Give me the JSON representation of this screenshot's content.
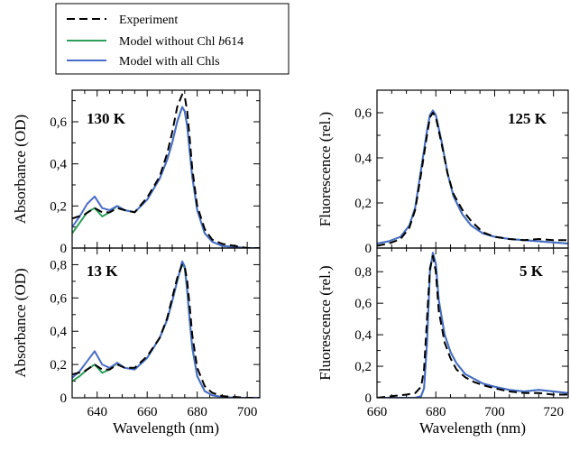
{
  "legend": {
    "entries": [
      {
        "label": "Experiment",
        "color": "#000000",
        "dash": true
      },
      {
        "label": "Model without Chl b614",
        "label_main": "Model without Chl ",
        "label_italic": "b",
        "label_tail": "614",
        "color": "#2ca05a",
        "dash": false
      },
      {
        "label": "Model with all Chls",
        "color": "#4a6cc8",
        "dash": false
      }
    ]
  },
  "colors": {
    "experiment": "#000000",
    "model_without": "#2ca05a",
    "model_all": "#4a6cc8"
  },
  "chart_data": [
    {
      "id": "abs-130K",
      "type": "line",
      "annotation": "130 K",
      "xlabel": "",
      "ylabel": "Absorbance (OD)",
      "xlim": [
        630,
        705
      ],
      "ylim": [
        0,
        0.75
      ],
      "xticks": [
        640,
        660,
        680,
        700
      ],
      "xtick_labels": [
        "640",
        "660",
        "680",
        "700"
      ],
      "yticks": [
        0,
        0.2,
        0.4,
        0.6
      ],
      "ytick_labels": [
        "0",
        "0,2",
        "0,4",
        "0,6"
      ],
      "series": [
        {
          "key": "experiment",
          "x": [
            630,
            635,
            639,
            642,
            645,
            648,
            651,
            655,
            660,
            665,
            668,
            670,
            672,
            674,
            675,
            676,
            677,
            678,
            680,
            683,
            686,
            690,
            695,
            700,
            705
          ],
          "y": [
            0.14,
            0.16,
            0.19,
            0.17,
            0.17,
            0.19,
            0.18,
            0.17,
            0.24,
            0.34,
            0.45,
            0.55,
            0.67,
            0.73,
            0.72,
            0.65,
            0.52,
            0.38,
            0.2,
            0.09,
            0.04,
            0.02,
            0.01,
            0.0,
            0.0
          ]
        },
        {
          "key": "model_without",
          "x": [
            630,
            633,
            636,
            639,
            642,
            645,
            648,
            651,
            655,
            660,
            665,
            668,
            670,
            672,
            674,
            675,
            676,
            677,
            678,
            680,
            683,
            686,
            690,
            695,
            700,
            705
          ],
          "y": [
            0.07,
            0.12,
            0.17,
            0.19,
            0.15,
            0.17,
            0.2,
            0.18,
            0.17,
            0.23,
            0.33,
            0.42,
            0.5,
            0.6,
            0.67,
            0.65,
            0.58,
            0.46,
            0.34,
            0.18,
            0.07,
            0.03,
            0.01,
            0.005,
            0.0,
            0.0
          ]
        },
        {
          "key": "model_all",
          "x": [
            630,
            633,
            636,
            639,
            642,
            645,
            648,
            651,
            655,
            660,
            665,
            668,
            670,
            672,
            674,
            675,
            676,
            677,
            678,
            680,
            683,
            686,
            690,
            695,
            700,
            705
          ],
          "y": [
            0.1,
            0.15,
            0.21,
            0.245,
            0.19,
            0.18,
            0.2,
            0.18,
            0.17,
            0.23,
            0.33,
            0.42,
            0.5,
            0.6,
            0.67,
            0.65,
            0.58,
            0.46,
            0.34,
            0.18,
            0.07,
            0.03,
            0.01,
            0.005,
            0.0,
            0.0
          ]
        }
      ]
    },
    {
      "id": "abs-13K",
      "type": "line",
      "annotation": "13 K",
      "xlabel": "Wavelength (nm)",
      "ylabel": "Absorbance (OD)",
      "xlim": [
        630,
        705
      ],
      "ylim": [
        0,
        0.9
      ],
      "xticks": [
        640,
        660,
        680,
        700
      ],
      "xtick_labels": [
        "640",
        "660",
        "680",
        "700"
      ],
      "yticks": [
        0,
        0.2,
        0.4,
        0.6,
        0.8
      ],
      "ytick_labels": [
        "0",
        "0,2",
        "0,4",
        "0,6",
        "0,8"
      ],
      "series": [
        {
          "key": "experiment",
          "x": [
            630,
            635,
            639,
            642,
            645,
            648,
            651,
            655,
            660,
            665,
            668,
            670,
            672,
            674,
            675,
            676,
            677,
            678,
            680,
            683,
            686,
            690,
            695,
            700,
            705
          ],
          "y": [
            0.14,
            0.16,
            0.2,
            0.17,
            0.17,
            0.2,
            0.18,
            0.18,
            0.25,
            0.36,
            0.48,
            0.6,
            0.72,
            0.8,
            0.79,
            0.7,
            0.55,
            0.38,
            0.18,
            0.07,
            0.03,
            0.01,
            0.005,
            0.0,
            0.0
          ]
        },
        {
          "key": "model_without",
          "x": [
            630,
            633,
            636,
            639,
            642,
            645,
            648,
            651,
            655,
            660,
            665,
            668,
            670,
            672,
            674,
            675,
            676,
            677,
            678,
            680,
            683,
            686,
            690,
            695,
            700,
            705
          ],
          "y": [
            0.1,
            0.13,
            0.17,
            0.2,
            0.15,
            0.17,
            0.21,
            0.18,
            0.17,
            0.24,
            0.36,
            0.47,
            0.58,
            0.7,
            0.81,
            0.78,
            0.64,
            0.46,
            0.3,
            0.13,
            0.04,
            0.015,
            0.005,
            0.0,
            0.0,
            0.0
          ]
        },
        {
          "key": "model_all",
          "x": [
            630,
            633,
            636,
            639,
            642,
            645,
            648,
            651,
            655,
            660,
            665,
            668,
            670,
            672,
            674,
            675,
            676,
            677,
            678,
            680,
            683,
            686,
            690,
            695,
            700,
            705
          ],
          "y": [
            0.12,
            0.16,
            0.22,
            0.28,
            0.2,
            0.18,
            0.21,
            0.18,
            0.17,
            0.24,
            0.36,
            0.47,
            0.58,
            0.7,
            0.82,
            0.79,
            0.65,
            0.47,
            0.31,
            0.13,
            0.04,
            0.015,
            0.005,
            0.0,
            0.0,
            0.0
          ]
        }
      ]
    },
    {
      "id": "fl-125K",
      "type": "line",
      "annotation": "125 K",
      "xlabel": "",
      "ylabel": "Fluorescence (rel.)",
      "xlim": [
        660,
        725
      ],
      "ylim": [
        0,
        0.7
      ],
      "xticks": [
        660,
        680,
        700,
        720
      ],
      "xtick_labels": [
        "660",
        "680",
        "700",
        "720"
      ],
      "yticks": [
        0,
        0.2,
        0.4,
        0.6
      ],
      "ytick_labels": [
        "0",
        "0,2",
        "0,4",
        "0,6"
      ],
      "series": [
        {
          "key": "experiment",
          "x": [
            660,
            664,
            668,
            671,
            673,
            675,
            677,
            678,
            679,
            680,
            682,
            684,
            686,
            689,
            692,
            696,
            700,
            705,
            710,
            715,
            720,
            725
          ],
          "y": [
            0.01,
            0.02,
            0.04,
            0.09,
            0.17,
            0.33,
            0.5,
            0.58,
            0.6,
            0.58,
            0.46,
            0.33,
            0.24,
            0.17,
            0.12,
            0.07,
            0.05,
            0.04,
            0.035,
            0.04,
            0.035,
            0.035
          ]
        },
        {
          "key": "model_without",
          "x": [
            660,
            664,
            668,
            671,
            673,
            675,
            677,
            678,
            679,
            680,
            682,
            684,
            686,
            689,
            692,
            696,
            700,
            705,
            710,
            715,
            720,
            725
          ],
          "y": [
            0.02,
            0.03,
            0.05,
            0.1,
            0.18,
            0.35,
            0.52,
            0.59,
            0.61,
            0.59,
            0.47,
            0.33,
            0.23,
            0.15,
            0.1,
            0.065,
            0.05,
            0.04,
            0.035,
            0.03,
            0.025,
            0.02
          ]
        },
        {
          "key": "model_all",
          "x": [
            660,
            664,
            668,
            671,
            673,
            675,
            677,
            678,
            679,
            680,
            682,
            684,
            686,
            689,
            692,
            696,
            700,
            705,
            710,
            715,
            720,
            725
          ],
          "y": [
            0.02,
            0.03,
            0.05,
            0.1,
            0.18,
            0.35,
            0.52,
            0.59,
            0.61,
            0.59,
            0.47,
            0.33,
            0.23,
            0.15,
            0.1,
            0.065,
            0.05,
            0.04,
            0.035,
            0.03,
            0.025,
            0.02
          ]
        }
      ]
    },
    {
      "id": "fl-5K",
      "type": "line",
      "annotation": "5 K",
      "xlabel": "Wavelength (nm)",
      "ylabel": "Fluorescence (rel.)",
      "xlim": [
        660,
        725
      ],
      "ylim": [
        0,
        0.95
      ],
      "xticks": [
        660,
        680,
        700,
        720
      ],
      "xtick_labels": [
        "660",
        "680",
        "700",
        "720"
      ],
      "yticks": [
        0,
        0.2,
        0.4,
        0.6,
        0.8
      ],
      "ytick_labels": [
        "0",
        "0,2",
        "0,4",
        "0,6",
        "0,8"
      ],
      "series": [
        {
          "key": "experiment",
          "x": [
            660,
            665,
            670,
            673,
            675,
            676,
            677,
            678,
            679,
            680,
            681,
            683,
            685,
            687,
            690,
            693,
            696,
            700,
            705,
            710,
            715,
            720,
            725
          ],
          "y": [
            0.0,
            0.01,
            0.02,
            0.03,
            0.07,
            0.18,
            0.5,
            0.82,
            0.9,
            0.8,
            0.55,
            0.35,
            0.25,
            0.18,
            0.13,
            0.1,
            0.08,
            0.06,
            0.04,
            0.03,
            0.03,
            0.02,
            0.02
          ]
        },
        {
          "key": "model_without",
          "x": [
            660,
            665,
            670,
            673,
            675,
            676,
            677,
            678,
            679,
            680,
            681,
            683,
            685,
            687,
            690,
            693,
            696,
            700,
            705,
            710,
            715,
            720,
            725
          ],
          "y": [
            0.0,
            0.0,
            0.0,
            0.0,
            0.01,
            0.06,
            0.35,
            0.8,
            0.92,
            0.85,
            0.62,
            0.4,
            0.29,
            0.22,
            0.15,
            0.12,
            0.09,
            0.07,
            0.05,
            0.04,
            0.05,
            0.04,
            0.03
          ]
        },
        {
          "key": "model_all",
          "x": [
            660,
            665,
            670,
            673,
            675,
            676,
            677,
            678,
            679,
            680,
            681,
            683,
            685,
            687,
            690,
            693,
            696,
            700,
            705,
            710,
            715,
            720,
            725
          ],
          "y": [
            0.0,
            0.0,
            0.0,
            0.0,
            0.01,
            0.06,
            0.35,
            0.8,
            0.92,
            0.85,
            0.62,
            0.4,
            0.29,
            0.22,
            0.15,
            0.12,
            0.09,
            0.07,
            0.05,
            0.04,
            0.05,
            0.04,
            0.03
          ]
        }
      ]
    }
  ]
}
